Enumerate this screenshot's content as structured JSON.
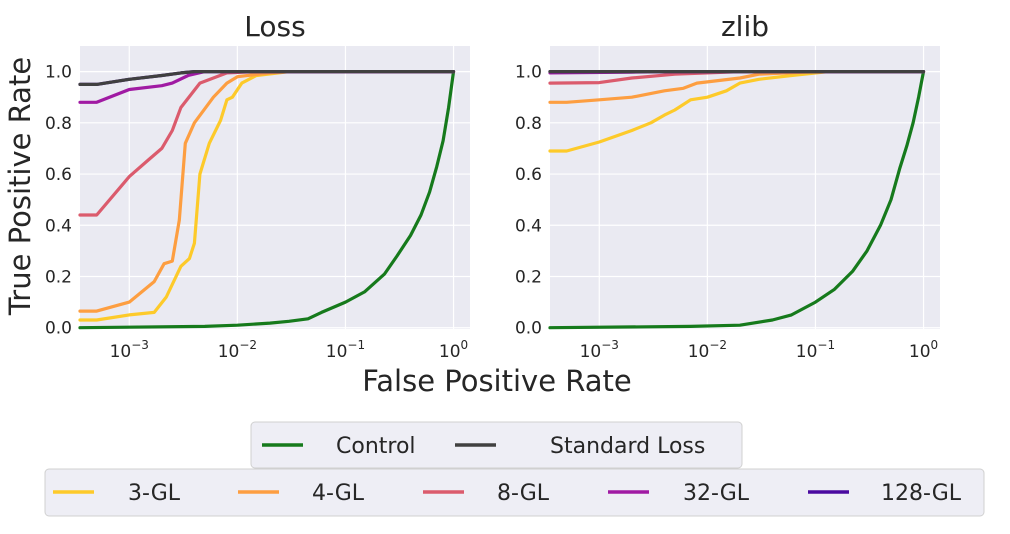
{
  "chart_data": {
    "type": "line",
    "ylabel": "True Positive Rate",
    "xlabel": "False Positive Rate",
    "xscale": "log",
    "xlim": [
      0.00035,
      1.42
    ],
    "ylim": [
      -0.005,
      1.1
    ],
    "yticks": [
      0.0,
      0.2,
      0.4,
      0.6,
      0.8,
      1.0
    ],
    "ytick_labels": [
      "0.0",
      "0.2",
      "0.4",
      "0.6",
      "0.8",
      "1.0"
    ],
    "xticks": [
      0.001,
      0.01,
      0.1,
      1
    ],
    "xtick_labels": [
      {
        "base": "10",
        "exp": "−3"
      },
      {
        "base": "10",
        "exp": "−2"
      },
      {
        "base": "10",
        "exp": "−1"
      },
      {
        "base": "10",
        "exp": "0"
      }
    ],
    "grid": true,
    "colors": {
      "Control": "#167a1c",
      "Standard Loss": "#404040",
      "3-GL": "#fdca2a",
      "4-GL": "#fd9e41",
      "8-GL": "#db5b6d",
      "32-GL": "#a01aa3",
      "128-GL": "#4a0aa0"
    },
    "legends": [
      {
        "placement": "bottom-center",
        "entries": [
          "Control",
          "Standard Loss"
        ]
      },
      {
        "placement": "bottom-center",
        "entries": [
          "3-GL",
          "4-GL",
          "8-GL",
          "32-GL",
          "128-GL"
        ]
      }
    ],
    "panels": [
      {
        "title": "Loss",
        "series": [
          {
            "name": "Control",
            "points": [
              [
                0.00035,
                0
              ],
              [
                0.005,
                0.005
              ],
              [
                0.01,
                0.01
              ],
              [
                0.02,
                0.018
              ],
              [
                0.03,
                0.025
              ],
              [
                0.045,
                0.035
              ],
              [
                0.06,
                0.06
              ],
              [
                0.1,
                0.1
              ],
              [
                0.15,
                0.14
              ],
              [
                0.23,
                0.21
              ],
              [
                0.3,
                0.28
              ],
              [
                0.4,
                0.36
              ],
              [
                0.5,
                0.44
              ],
              [
                0.6,
                0.53
              ],
              [
                0.7,
                0.63
              ],
              [
                0.8,
                0.73
              ],
              [
                0.9,
                0.86
              ],
              [
                1,
                1
              ]
            ]
          },
          {
            "name": "3-GL",
            "points": [
              [
                0.00035,
                0.03
              ],
              [
                0.0005,
                0.03
              ],
              [
                0.001,
                0.05
              ],
              [
                0.0017,
                0.06
              ],
              [
                0.0022,
                0.12
              ],
              [
                0.003,
                0.24
              ],
              [
                0.0036,
                0.27
              ],
              [
                0.004,
                0.33
              ],
              [
                0.0045,
                0.6
              ],
              [
                0.0055,
                0.72
              ],
              [
                0.007,
                0.81
              ],
              [
                0.008,
                0.89
              ],
              [
                0.009,
                0.9
              ],
              [
                0.011,
                0.955
              ],
              [
                0.015,
                0.985
              ],
              [
                0.03,
                1
              ],
              [
                1,
                1
              ]
            ]
          },
          {
            "name": "4-GL",
            "points": [
              [
                0.00035,
                0.065
              ],
              [
                0.0005,
                0.065
              ],
              [
                0.001,
                0.1
              ],
              [
                0.0017,
                0.18
              ],
              [
                0.0021,
                0.25
              ],
              [
                0.0025,
                0.26
              ],
              [
                0.0029,
                0.42
              ],
              [
                0.0033,
                0.72
              ],
              [
                0.004,
                0.8
              ],
              [
                0.006,
                0.9
              ],
              [
                0.008,
                0.955
              ],
              [
                0.01,
                0.98
              ],
              [
                0.02,
                0.995
              ],
              [
                0.03,
                1
              ],
              [
                1,
                1
              ]
            ]
          },
          {
            "name": "8-GL",
            "points": [
              [
                0.00035,
                0.44
              ],
              [
                0.0005,
                0.44
              ],
              [
                0.001,
                0.59
              ],
              [
                0.0015,
                0.655
              ],
              [
                0.002,
                0.7
              ],
              [
                0.0025,
                0.77
              ],
              [
                0.003,
                0.86
              ],
              [
                0.0045,
                0.955
              ],
              [
                0.006,
                0.975
              ],
              [
                0.008,
                0.995
              ],
              [
                0.015,
                1
              ],
              [
                1,
                1
              ]
            ]
          },
          {
            "name": "32-GL",
            "points": [
              [
                0.00035,
                0.88
              ],
              [
                0.0005,
                0.88
              ],
              [
                0.001,
                0.93
              ],
              [
                0.002,
                0.945
              ],
              [
                0.0025,
                0.955
              ],
              [
                0.0035,
                0.985
              ],
              [
                0.005,
                1
              ],
              [
                1,
                1
              ]
            ]
          },
          {
            "name": "128-GL",
            "points": [
              [
                0.00035,
                0.95
              ],
              [
                0.0005,
                0.95
              ],
              [
                0.001,
                0.97
              ],
              [
                0.002,
                0.985
              ],
              [
                0.003,
                0.995
              ],
              [
                0.004,
                1
              ],
              [
                1,
                1
              ]
            ]
          },
          {
            "name": "Standard Loss",
            "points": [
              [
                0.00035,
                0.95
              ],
              [
                0.0005,
                0.95
              ],
              [
                0.001,
                0.97
              ],
              [
                0.002,
                0.985
              ],
              [
                0.003,
                0.995
              ],
              [
                0.004,
                1
              ],
              [
                1,
                1
              ]
            ]
          }
        ]
      },
      {
        "title": "zlib",
        "series": [
          {
            "name": "Control",
            "points": [
              [
                0.00035,
                0
              ],
              [
                0.007,
                0.005
              ],
              [
                0.02,
                0.01
              ],
              [
                0.04,
                0.03
              ],
              [
                0.06,
                0.05
              ],
              [
                0.1,
                0.1
              ],
              [
                0.15,
                0.15
              ],
              [
                0.22,
                0.22
              ],
              [
                0.3,
                0.3
              ],
              [
                0.4,
                0.4
              ],
              [
                0.5,
                0.5
              ],
              [
                0.6,
                0.62
              ],
              [
                0.7,
                0.71
              ],
              [
                0.8,
                0.8
              ],
              [
                0.9,
                0.9
              ],
              [
                1,
                1
              ]
            ]
          },
          {
            "name": "3-GL",
            "points": [
              [
                0.00035,
                0.69
              ],
              [
                0.0005,
                0.69
              ],
              [
                0.001,
                0.725
              ],
              [
                0.002,
                0.77
              ],
              [
                0.003,
                0.8
              ],
              [
                0.004,
                0.83
              ],
              [
                0.005,
                0.85
              ],
              [
                0.007,
                0.89
              ],
              [
                0.01,
                0.9
              ],
              [
                0.015,
                0.925
              ],
              [
                0.02,
                0.955
              ],
              [
                0.03,
                0.97
              ],
              [
                0.06,
                0.985
              ],
              [
                0.13,
                1
              ],
              [
                1,
                1
              ]
            ]
          },
          {
            "name": "4-GL",
            "points": [
              [
                0.00035,
                0.88
              ],
              [
                0.0005,
                0.88
              ],
              [
                0.001,
                0.89
              ],
              [
                0.002,
                0.9
              ],
              [
                0.004,
                0.925
              ],
              [
                0.006,
                0.935
              ],
              [
                0.008,
                0.955
              ],
              [
                0.01,
                0.96
              ],
              [
                0.02,
                0.975
              ],
              [
                0.03,
                0.99
              ],
              [
                0.1,
                1
              ],
              [
                1,
                1
              ]
            ]
          },
          {
            "name": "8-GL",
            "points": [
              [
                0.00035,
                0.955
              ],
              [
                0.001,
                0.957
              ],
              [
                0.002,
                0.975
              ],
              [
                0.005,
                0.99
              ],
              [
                0.01,
                0.995
              ],
              [
                0.02,
                1
              ],
              [
                1,
                1
              ]
            ]
          },
          {
            "name": "32-GL",
            "points": [
              [
                0.00035,
                0.995
              ],
              [
                0.002,
                0.998
              ],
              [
                0.005,
                1
              ],
              [
                1,
                1
              ]
            ]
          },
          {
            "name": "128-GL",
            "points": [
              [
                0.00035,
                1
              ],
              [
                1,
                1
              ]
            ]
          },
          {
            "name": "Standard Loss",
            "points": [
              [
                0.00035,
                1
              ],
              [
                1,
                1
              ]
            ]
          }
        ]
      }
    ]
  }
}
